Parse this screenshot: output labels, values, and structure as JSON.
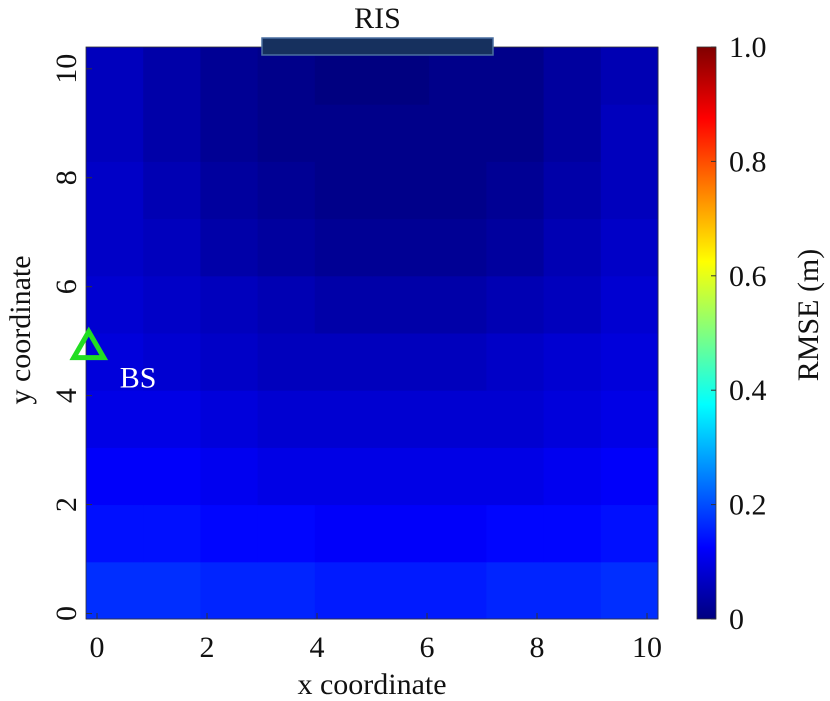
{
  "chart_data": {
    "type": "heatmap",
    "xlabel": "x coordinate",
    "ylabel": "y coordinate",
    "colorbar_label": "RMSE (m)",
    "colormap": "jet",
    "xlim": [
      -0.2,
      10.2
    ],
    "ylim": [
      -0.1,
      10.4
    ],
    "xticks": [
      0,
      2,
      4,
      6,
      8,
      10
    ],
    "yticks": [
      0,
      2,
      4,
      6,
      8,
      10
    ],
    "clim": [
      0,
      1
    ],
    "cticks": [
      0,
      0.2,
      0.4,
      0.6,
      0.8,
      {
        "value": 1,
        "label": "1.0"
      }
    ],
    "x": [
      0.32,
      1.36,
      2.4,
      3.44,
      4.48,
      5.52,
      6.56,
      7.6,
      8.64,
      9.68
    ],
    "y": [
      0.425,
      1.475,
      2.525,
      3.575,
      4.625,
      5.675,
      6.725,
      7.775,
      8.825,
      9.875
    ],
    "z": [
      [
        0.17,
        0.17,
        0.16,
        0.16,
        0.15,
        0.15,
        0.15,
        0.16,
        0.16,
        0.17
      ],
      [
        0.14,
        0.14,
        0.13,
        0.13,
        0.12,
        0.12,
        0.12,
        0.13,
        0.13,
        0.14
      ],
      [
        0.12,
        0.12,
        0.11,
        0.1,
        0.1,
        0.1,
        0.1,
        0.1,
        0.11,
        0.12
      ],
      [
        0.1,
        0.1,
        0.09,
        0.08,
        0.08,
        0.08,
        0.08,
        0.08,
        0.09,
        0.1
      ],
      [
        0.09,
        0.08,
        0.07,
        0.06,
        0.06,
        0.06,
        0.06,
        0.07,
        0.08,
        0.09
      ],
      [
        0.08,
        0.07,
        0.06,
        0.05,
        0.04,
        0.04,
        0.04,
        0.05,
        0.06,
        0.08
      ],
      [
        0.07,
        0.06,
        0.04,
        0.03,
        0.02,
        0.02,
        0.02,
        0.03,
        0.05,
        0.07
      ],
      [
        0.07,
        0.05,
        0.03,
        0.02,
        0.01,
        0.01,
        0.01,
        0.02,
        0.04,
        0.06
      ],
      [
        0.06,
        0.04,
        0.02,
        0.01,
        0.01,
        0.01,
        0.01,
        0.01,
        0.03,
        0.06
      ],
      [
        0.06,
        0.04,
        0.02,
        0.01,
        0.0,
        0.0,
        0.01,
        0.01,
        0.03,
        0.05
      ]
    ],
    "ris": {
      "label": "RIS",
      "x": [
        3.0,
        7.2
      ],
      "color": "#16305e"
    },
    "bs": {
      "label": "BS",
      "x": -0.15,
      "y": 4.9,
      "color": "#22dd22"
    }
  }
}
